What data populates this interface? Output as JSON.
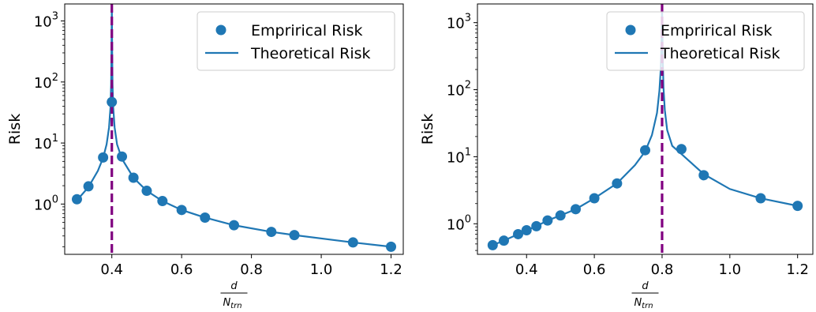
{
  "chart_data": [
    {
      "type": "scatter",
      "xlabel": {
        "numerator": "d",
        "denominator": "N",
        "subscript": "trn"
      },
      "ylabel": "Risk",
      "xlim": [
        0.265,
        1.235
      ],
      "ylim": [
        0.15,
        1900
      ],
      "yscale": "log",
      "xticks": [
        0.4,
        0.6,
        0.8,
        1.0,
        1.2
      ],
      "xtick_labels": [
        "0.4",
        "0.6",
        "0.8",
        "1.0",
        "1.2"
      ],
      "yticks": [
        1,
        10,
        100,
        1000
      ],
      "ytick_labels": [
        {
          "base": "10",
          "exp": "0"
        },
        {
          "base": "10",
          "exp": "1"
        },
        {
          "base": "10",
          "exp": "2"
        },
        {
          "base": "10",
          "exp": "3"
        }
      ],
      "vline": {
        "x": 0.4,
        "color": "#800080",
        "style": "dashed"
      },
      "legend": {
        "position": "top-right",
        "entries": [
          "Emprirical Risk",
          "Theoretical Risk"
        ]
      },
      "series": [
        {
          "name": "Emprirical Risk",
          "kind": "scatter",
          "color": "#1f77b4",
          "x": [
            0.3,
            0.333,
            0.375,
            0.4,
            0.429,
            0.462,
            0.5,
            0.545,
            0.6,
            0.667,
            0.75,
            0.857,
            0.923,
            1.091,
            1.2
          ],
          "y": [
            1.2,
            1.95,
            5.8,
            47,
            6.0,
            2.7,
            1.65,
            1.12,
            0.8,
            0.6,
            0.45,
            0.35,
            0.31,
            0.235,
            0.2
          ]
        },
        {
          "name": "Theoretical Risk",
          "kind": "line",
          "color": "#1f77b4",
          "x": [
            0.3,
            0.333,
            0.36,
            0.375,
            0.385,
            0.392,
            0.396,
            0.398,
            0.399,
            0.4,
            0.401,
            0.402,
            0.404,
            0.408,
            0.415,
            0.429,
            0.462,
            0.5,
            0.545,
            0.6,
            0.667,
            0.75,
            0.857,
            0.923,
            1.091,
            1.2
          ],
          "y": [
            1.15,
            1.9,
            3.5,
            5.7,
            9.5,
            18,
            38,
            90,
            300,
            2000,
            300,
            90,
            38,
            18,
            9.5,
            5.5,
            2.7,
            1.65,
            1.12,
            0.8,
            0.6,
            0.45,
            0.35,
            0.31,
            0.235,
            0.2
          ]
        }
      ]
    },
    {
      "type": "scatter",
      "xlabel": {
        "numerator": "d",
        "denominator": "N",
        "subscript": "trn"
      },
      "ylabel": "Risk",
      "xlim": [
        0.255,
        1.245
      ],
      "ylim": [
        0.35,
        1900
      ],
      "yscale": "log",
      "xticks": [
        0.4,
        0.6,
        0.8,
        1.0,
        1.2
      ],
      "xtick_labels": [
        "0.4",
        "0.6",
        "0.8",
        "1.0",
        "1.2"
      ],
      "yticks": [
        1,
        10,
        100,
        1000
      ],
      "ytick_labels": [
        {
          "base": "10",
          "exp": "0"
        },
        {
          "base": "10",
          "exp": "1"
        },
        {
          "base": "10",
          "exp": "2"
        },
        {
          "base": "10",
          "exp": "3"
        }
      ],
      "vline": {
        "x": 0.8,
        "color": "#800080",
        "style": "dashed"
      },
      "legend": {
        "position": "top-right",
        "entries": [
          "Emprirical Risk",
          "Theoretical Risk"
        ]
      },
      "series": [
        {
          "name": "Emprirical Risk",
          "kind": "scatter",
          "color": "#1f77b4",
          "x": [
            0.3,
            0.333,
            0.375,
            0.4,
            0.429,
            0.462,
            0.5,
            0.545,
            0.6,
            0.667,
            0.75,
            0.857,
            0.923,
            1.091,
            1.2
          ],
          "y": [
            0.48,
            0.56,
            0.7,
            0.8,
            0.92,
            1.12,
            1.33,
            1.65,
            2.4,
            4.0,
            12.5,
            13,
            5.3,
            2.4,
            1.85
          ]
        },
        {
          "name": "Theoretical Risk",
          "kind": "line",
          "color": "#1f77b4",
          "x": [
            0.3,
            0.333,
            0.375,
            0.4,
            0.429,
            0.462,
            0.5,
            0.545,
            0.6,
            0.667,
            0.72,
            0.75,
            0.77,
            0.785,
            0.792,
            0.796,
            0.798,
            0.799,
            0.8,
            0.801,
            0.802,
            0.804,
            0.808,
            0.815,
            0.83,
            0.857,
            0.923,
            1.0,
            1.091,
            1.2
          ],
          "y": [
            0.48,
            0.56,
            0.7,
            0.8,
            0.92,
            1.12,
            1.33,
            1.65,
            2.4,
            4.0,
            7.5,
            12,
            21,
            45,
            95,
            200,
            420,
            900,
            2000,
            700,
            300,
            110,
            50,
            25,
            14.5,
            11,
            5.5,
            3.3,
            2.4,
            1.85
          ]
        }
      ]
    }
  ]
}
